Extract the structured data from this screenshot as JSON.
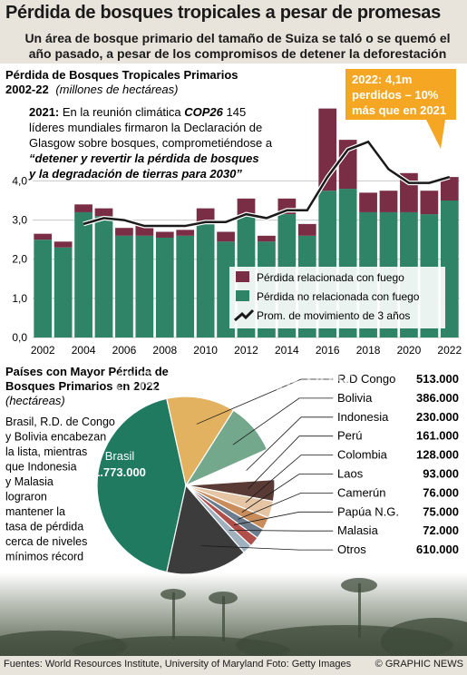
{
  "header": {
    "title": "Pérdida de bosques tropicales a pesar de promesas",
    "subtitle_line1": "Un área de bosque primario del tamaño de Suiza se taló o se quemó el",
    "subtitle_line2": "año pasado, a pesar de los compromisos de detener la deforestación"
  },
  "footer": {
    "sources": "Fuentes: World Resources Institute, University of Maryland Foto: Getty Images",
    "credit": "© GRAPHIC NEWS"
  },
  "watermark": "GRAPHIC NEWS",
  "colors": {
    "fire": "#7a2e46",
    "nonfire": "#2f8468",
    "avg_line": "#1a1a1a",
    "callout": "#f5a623",
    "pie_brasil": "#1f7a60",
    "pie_rdcongo": "#e3b260",
    "pie_bolivia": "#73a88c",
    "pie_otros": "#3c3c3c"
  },
  "chart_data": [
    {
      "type": "bar",
      "title_line1": "Pérdida de Bosques Tropicales Primarios",
      "title_line2": "2002-22",
      "unit": "(millones de hectáreas)",
      "categories": [
        "2002",
        "2003",
        "2004",
        "2005",
        "2006",
        "2007",
        "2008",
        "2009",
        "2010",
        "2011",
        "2012",
        "2013",
        "2014",
        "2015",
        "2016",
        "2017",
        "2018",
        "2019",
        "2020",
        "2021",
        "2022"
      ],
      "x_tick_labels": [
        "2002",
        "2004",
        "2006",
        "2008",
        "2010",
        "2012",
        "2014",
        "2016",
        "2018",
        "2020",
        "2022"
      ],
      "series": [
        {
          "name": "Pérdida no relacionada con fuego",
          "values": [
            2.5,
            2.3,
            3.2,
            3.1,
            2.6,
            2.6,
            2.55,
            2.6,
            2.95,
            2.45,
            3.1,
            2.45,
            3.15,
            2.6,
            3.75,
            3.8,
            3.2,
            3.2,
            3.2,
            3.15,
            3.5
          ]
        },
        {
          "name": "Pérdida relacionada con fuego",
          "values": [
            0.15,
            0.15,
            0.2,
            0.2,
            0.2,
            0.3,
            0.15,
            0.15,
            0.35,
            0.25,
            0.45,
            0.15,
            0.4,
            0.3,
            2.1,
            1.25,
            0.5,
            0.55,
            1.0,
            0.6,
            0.6
          ]
        }
      ],
      "moving_average": {
        "name": "Prom. de movimiento de 3 años",
        "x": [
          "2004",
          "2005",
          "2006",
          "2007",
          "2008",
          "2009",
          "2010",
          "2011",
          "2012",
          "2013",
          "2014",
          "2015",
          "2016",
          "2017",
          "2018",
          "2019",
          "2020",
          "2021",
          "2022"
        ],
        "values": [
          2.9,
          3.05,
          3.0,
          2.85,
          2.85,
          2.85,
          2.95,
          2.95,
          3.15,
          3.05,
          3.25,
          3.25,
          4.1,
          4.8,
          5.0,
          4.3,
          3.95,
          3.95,
          4.1
        ]
      },
      "ylim": [
        0,
        7.0
      ],
      "y_ticks": [
        "0,0",
        "1,0",
        "2,0",
        "3,0",
        "4,0"
      ],
      "y_tick_values": [
        0,
        1,
        2,
        3,
        4
      ],
      "annotation": {
        "year": "2021:",
        "text1": " En la reunión climática ",
        "event": "COP26",
        "text2": " 145",
        "line2": "líderes mundiales firmaron la Declaración de",
        "line3": "Glasgow sobre bosques, comprometiéndose a",
        "quote1": "“detener y revertir la pérdida de bosques",
        "quote2": "y la degradación de tierras para 2030”"
      },
      "callout": {
        "line1": "2022: 4,1m",
        "line2": "perdidos – 10%",
        "line3": "más que en 2021"
      }
    },
    {
      "type": "pie",
      "title_line1": "Países con Mayor Pérdida de",
      "title_line2": "Bosques Primarios en 2022",
      "unit": "(hectáreas)",
      "description": [
        "Brasil, R.D. de Congo",
        "y Bolivia encabezan",
        "la lista, mientras",
        "que Indonesia",
        "y Malasia",
        "lograron",
        "mantener la",
        "tasa de pérdida",
        "cerca de niveles",
        "mínimos récord"
      ],
      "slices": [
        {
          "label": "Brasil",
          "value": 1773000,
          "display": "1.773.000",
          "color": "#1f7a60"
        },
        {
          "label": "R.D Congo",
          "value": 513000,
          "display": "513.000",
          "color": "#e3b260"
        },
        {
          "label": "Bolivia",
          "value": 386000,
          "display": "386.000",
          "color": "#73a88c"
        },
        {
          "label": "Indonesia",
          "value": 230000,
          "display": "230.000",
          "color": "#ffffff"
        },
        {
          "label": "Perú",
          "value": 161000,
          "display": "161.000",
          "color": "#5a3a34"
        },
        {
          "label": "Colombia",
          "value": 128000,
          "display": "128.000",
          "color": "#e6c5a4"
        },
        {
          "label": "Laos",
          "value": 93000,
          "display": "93.000",
          "color": "#c98d5c"
        },
        {
          "label": "Camerún",
          "value": 76000,
          "display": "76.000",
          "color": "#6c7c8c"
        },
        {
          "label": "Papúa N.G.",
          "value": 75000,
          "display": "75.000",
          "color": "#b04f4a"
        },
        {
          "label": "Malasia",
          "value": 72000,
          "display": "72.000",
          "color": "#9fb0bf"
        },
        {
          "label": "Otros",
          "value": 610000,
          "display": "610.000",
          "color": "#3c3c3c"
        }
      ]
    }
  ]
}
